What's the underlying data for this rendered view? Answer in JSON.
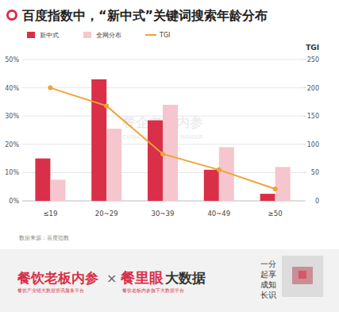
{
  "chart_data": {
    "type": "bar",
    "title": "百度指数中，“新中式”关键词搜索年龄分布",
    "categories": [
      "≤19",
      "20~29",
      "30~39",
      "40~49",
      "≥50"
    ],
    "series": [
      {
        "name": "新中式",
        "type": "bar",
        "color": "#d92f48",
        "values": [
          15,
          43,
          28.5,
          11,
          2.5
        ]
      },
      {
        "name": "全网分布",
        "type": "bar",
        "color": "#f5c6cd",
        "values": [
          7.5,
          25.5,
          34,
          19,
          12
        ]
      },
      {
        "name": "TGI",
        "type": "line",
        "color": "#f0a236",
        "marker": "circle",
        "axis": "y2",
        "values": [
          200,
          168,
          83,
          55,
          21
        ]
      }
    ],
    "ylim": [
      0,
      50
    ],
    "yticks": [
      {
        "value": 0,
        "label": "0%"
      },
      {
        "value": 10,
        "label": "10%"
      },
      {
        "value": 20,
        "label": "20%"
      },
      {
        "value": 30,
        "label": "30%"
      },
      {
        "value": 40,
        "label": "40%"
      },
      {
        "value": 50,
        "label": "50%"
      }
    ],
    "y2label": "TGI",
    "y2lim": [
      0,
      250
    ],
    "y2ticks": [
      0,
      50,
      100,
      150,
      200,
      250
    ],
    "grid": true,
    "legend": "top",
    "source": "数据来源：百度指数",
    "watermark": {
      "title": "餐企老板内参",
      "subtitle": "CHINA RESTAURANT INSIDER"
    }
  },
  "footer": {
    "brand1": "餐饮老板内参",
    "brand1_sub": "餐饮产业链大数据资讯服务平台",
    "cross": "×",
    "brand2_red": "餐里眼",
    "brand2_dark": "大数据",
    "brand2_sub": "餐饮老板内参旗下大数据平台",
    "slogan": [
      "一分",
      "起享",
      "成知",
      "长识"
    ]
  }
}
